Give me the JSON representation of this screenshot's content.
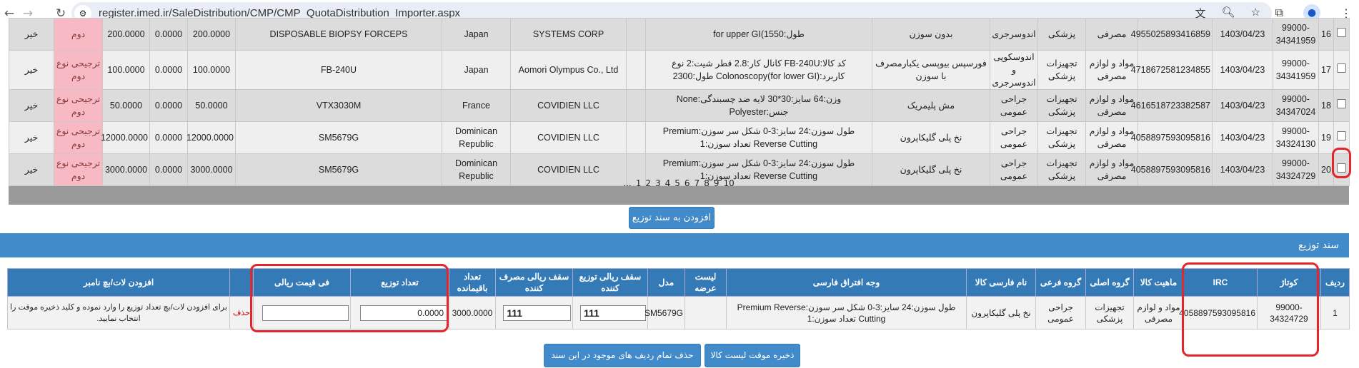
{
  "browser": {
    "url": "register.imed.ir/SaleDistribution/CMP/CMP_QuotaDistribution_Importer.aspx",
    "icons": [
      "back-icon",
      "forward-icon",
      "reload-icon",
      "site-settings-icon",
      "translate-icon",
      "zoom-icon",
      "star-icon",
      "extensions-icon",
      "profile-icon",
      "menu-icon"
    ]
  },
  "top_table": {
    "rows": [
      {
        "no": "16",
        "code": "99000-34341959",
        "date": "1403/04/23",
        "irc": "4955025893416859",
        "nature": "مصرفی",
        "group": "پزشکی",
        "subgroup": "اندوسرجری",
        "name": "بدون سوزن",
        "desc": "طول:1550)for upper GI",
        "company": "SYSTEMS CORP",
        "country": "Japan",
        "model": "DISPOSABLE BIOPSY FORCEPS",
        "n3": "200.0000",
        "n2": "0.0000",
        "n1": "200.0000",
        "type": "دوم",
        "flag": "خیر"
      },
      {
        "no": "17",
        "code": "99000-34341959",
        "date": "1403/04/23",
        "irc": "4718672581234855",
        "nature": "مواد و لوازم مصرفی",
        "group": "تجهیزات پزشکی",
        "subgroup": "اندوسکوپی و اندوسرجری",
        "name": "فورسپس بیوپسی یکبارمصرف با سوزن",
        "desc": "کد کالا:FB-240U کانال کار:2.8 قطر شیت:2 نوع کاربرد:Colonoscopy(for lower GI) طول:2300",
        "company": "Aomori Olympus Co., Ltd",
        "country": "Japan",
        "model": "FB-240U",
        "n3": "100.0000",
        "n2": "0.0000",
        "n1": "100.0000",
        "type": "ترجیحی نوع دوم",
        "flag": "خیر"
      },
      {
        "no": "18",
        "code": "99000-34347024",
        "date": "1403/04/23",
        "irc": "4616518723382587",
        "nature": "مواد و لوازم مصرفی",
        "group": "تجهیزات پزشکی",
        "subgroup": "جراحی عمومی",
        "name": "مش پلیمریک",
        "desc": "وزن:64 سایز:30*30 لایه ضد چسبندگی:None جنس:Polyester",
        "company": "COVIDIEN LLC",
        "country": "France",
        "model": "VTX3030M",
        "n3": "50.0000",
        "n2": "0.0000",
        "n1": "50.0000",
        "type": "ترجیحی نوع دوم",
        "flag": "خیر"
      },
      {
        "no": "19",
        "code": "99000-34324130",
        "date": "1403/04/23",
        "irc": "4058897593095816",
        "nature": "مواد و لوازم مصرفی",
        "group": "تجهیزات پزشکی",
        "subgroup": "جراحی عمومی",
        "name": "نخ پلی گلیکاپرون",
        "desc": "طول سوزن:24 سایز:3-0 شکل سر سوزن:Premium Reverse Cutting تعداد سوزن:1",
        "company": "COVIDIEN LLC",
        "country": "Dominican Republic",
        "model": "SM5679G",
        "n3": "12000.0000",
        "n2": "0.0000",
        "n1": "12000.0000",
        "type": "ترجیحی نوع دوم",
        "flag": "خیر"
      },
      {
        "no": "20",
        "code": "99000-34324729",
        "date": "1403/04/23",
        "irc": "4058897593095816",
        "nature": "مواد و لوازم مصرفی",
        "group": "تجهیزات پزشکی",
        "subgroup": "جراحی عمومی",
        "name": "نخ پلی گلیکاپرون",
        "desc": "طول سوزن:24 سایز:3-0 شکل سر سوزن:Premium Reverse Cutting تعداد سوزن:1",
        "company": "COVIDIEN LLC",
        "country": "Dominican Republic",
        "model": "SM5679G",
        "n3": "3000.0000",
        "n2": "0.0000",
        "n1": "3000.0000",
        "type": "ترجیحی نوع دوم",
        "flag": "خیر"
      }
    ],
    "pager": [
      "1",
      "2",
      "3",
      "4",
      "5",
      "6",
      "7",
      "8",
      "9",
      "10",
      "..."
    ]
  },
  "add_button": "افزودن به سند توزیع",
  "section_title": "سند توزیع",
  "doc_table": {
    "headers": [
      "ردیف",
      "کوتاژ",
      "IRC",
      "ماهیت کالا",
      "گروه اصلی",
      "گروه فرعی",
      "نام فارسی کالا",
      "وجه افتراق فارسی",
      "لیست عرضه",
      "مدل",
      "سقف ریالی توزیع کننده",
      "سقف ریالی مصرف کننده",
      "تعداد باقیمانده",
      "تعداد توزیع",
      "فی قیمت ریالی",
      "",
      "افزودن لات/بچ نامبر"
    ],
    "row": {
      "no": "1",
      "code": "99000-34324729",
      "irc": "4058897593095816",
      "nature": "مواد و لوازم مصرفی",
      "group": "تجهیزات پزشکی",
      "subgroup": "جراحی عمومی",
      "name": "نخ پلی گلیکاپرون",
      "desc": "طول سوزن:24 سایز:3-0 شکل سر سوزن:Premium Reverse Cutting تعداد سوزن:1",
      "list": "",
      "model": "SM5679G",
      "cap_dist": "111",
      "cap_cons": "111",
      "remaining": "3000.0000",
      "qty": "0.0000",
      "price": "",
      "delete": "حذف",
      "lot_hint": "برای افزودن لات/بچ تعداد توزیع را وارد نموده و کلید ذخیره موقت را انتخاب نمایید."
    }
  },
  "buttons": {
    "save": "ذخیره موقت لیست کالا",
    "delete_all": "حذف تمام ردیف های موجود در این سند"
  },
  "colors": {
    "primary": "#428bca",
    "header": "#337ab7",
    "highlight": "#f7b9c3",
    "annotation": "#e3252c"
  }
}
